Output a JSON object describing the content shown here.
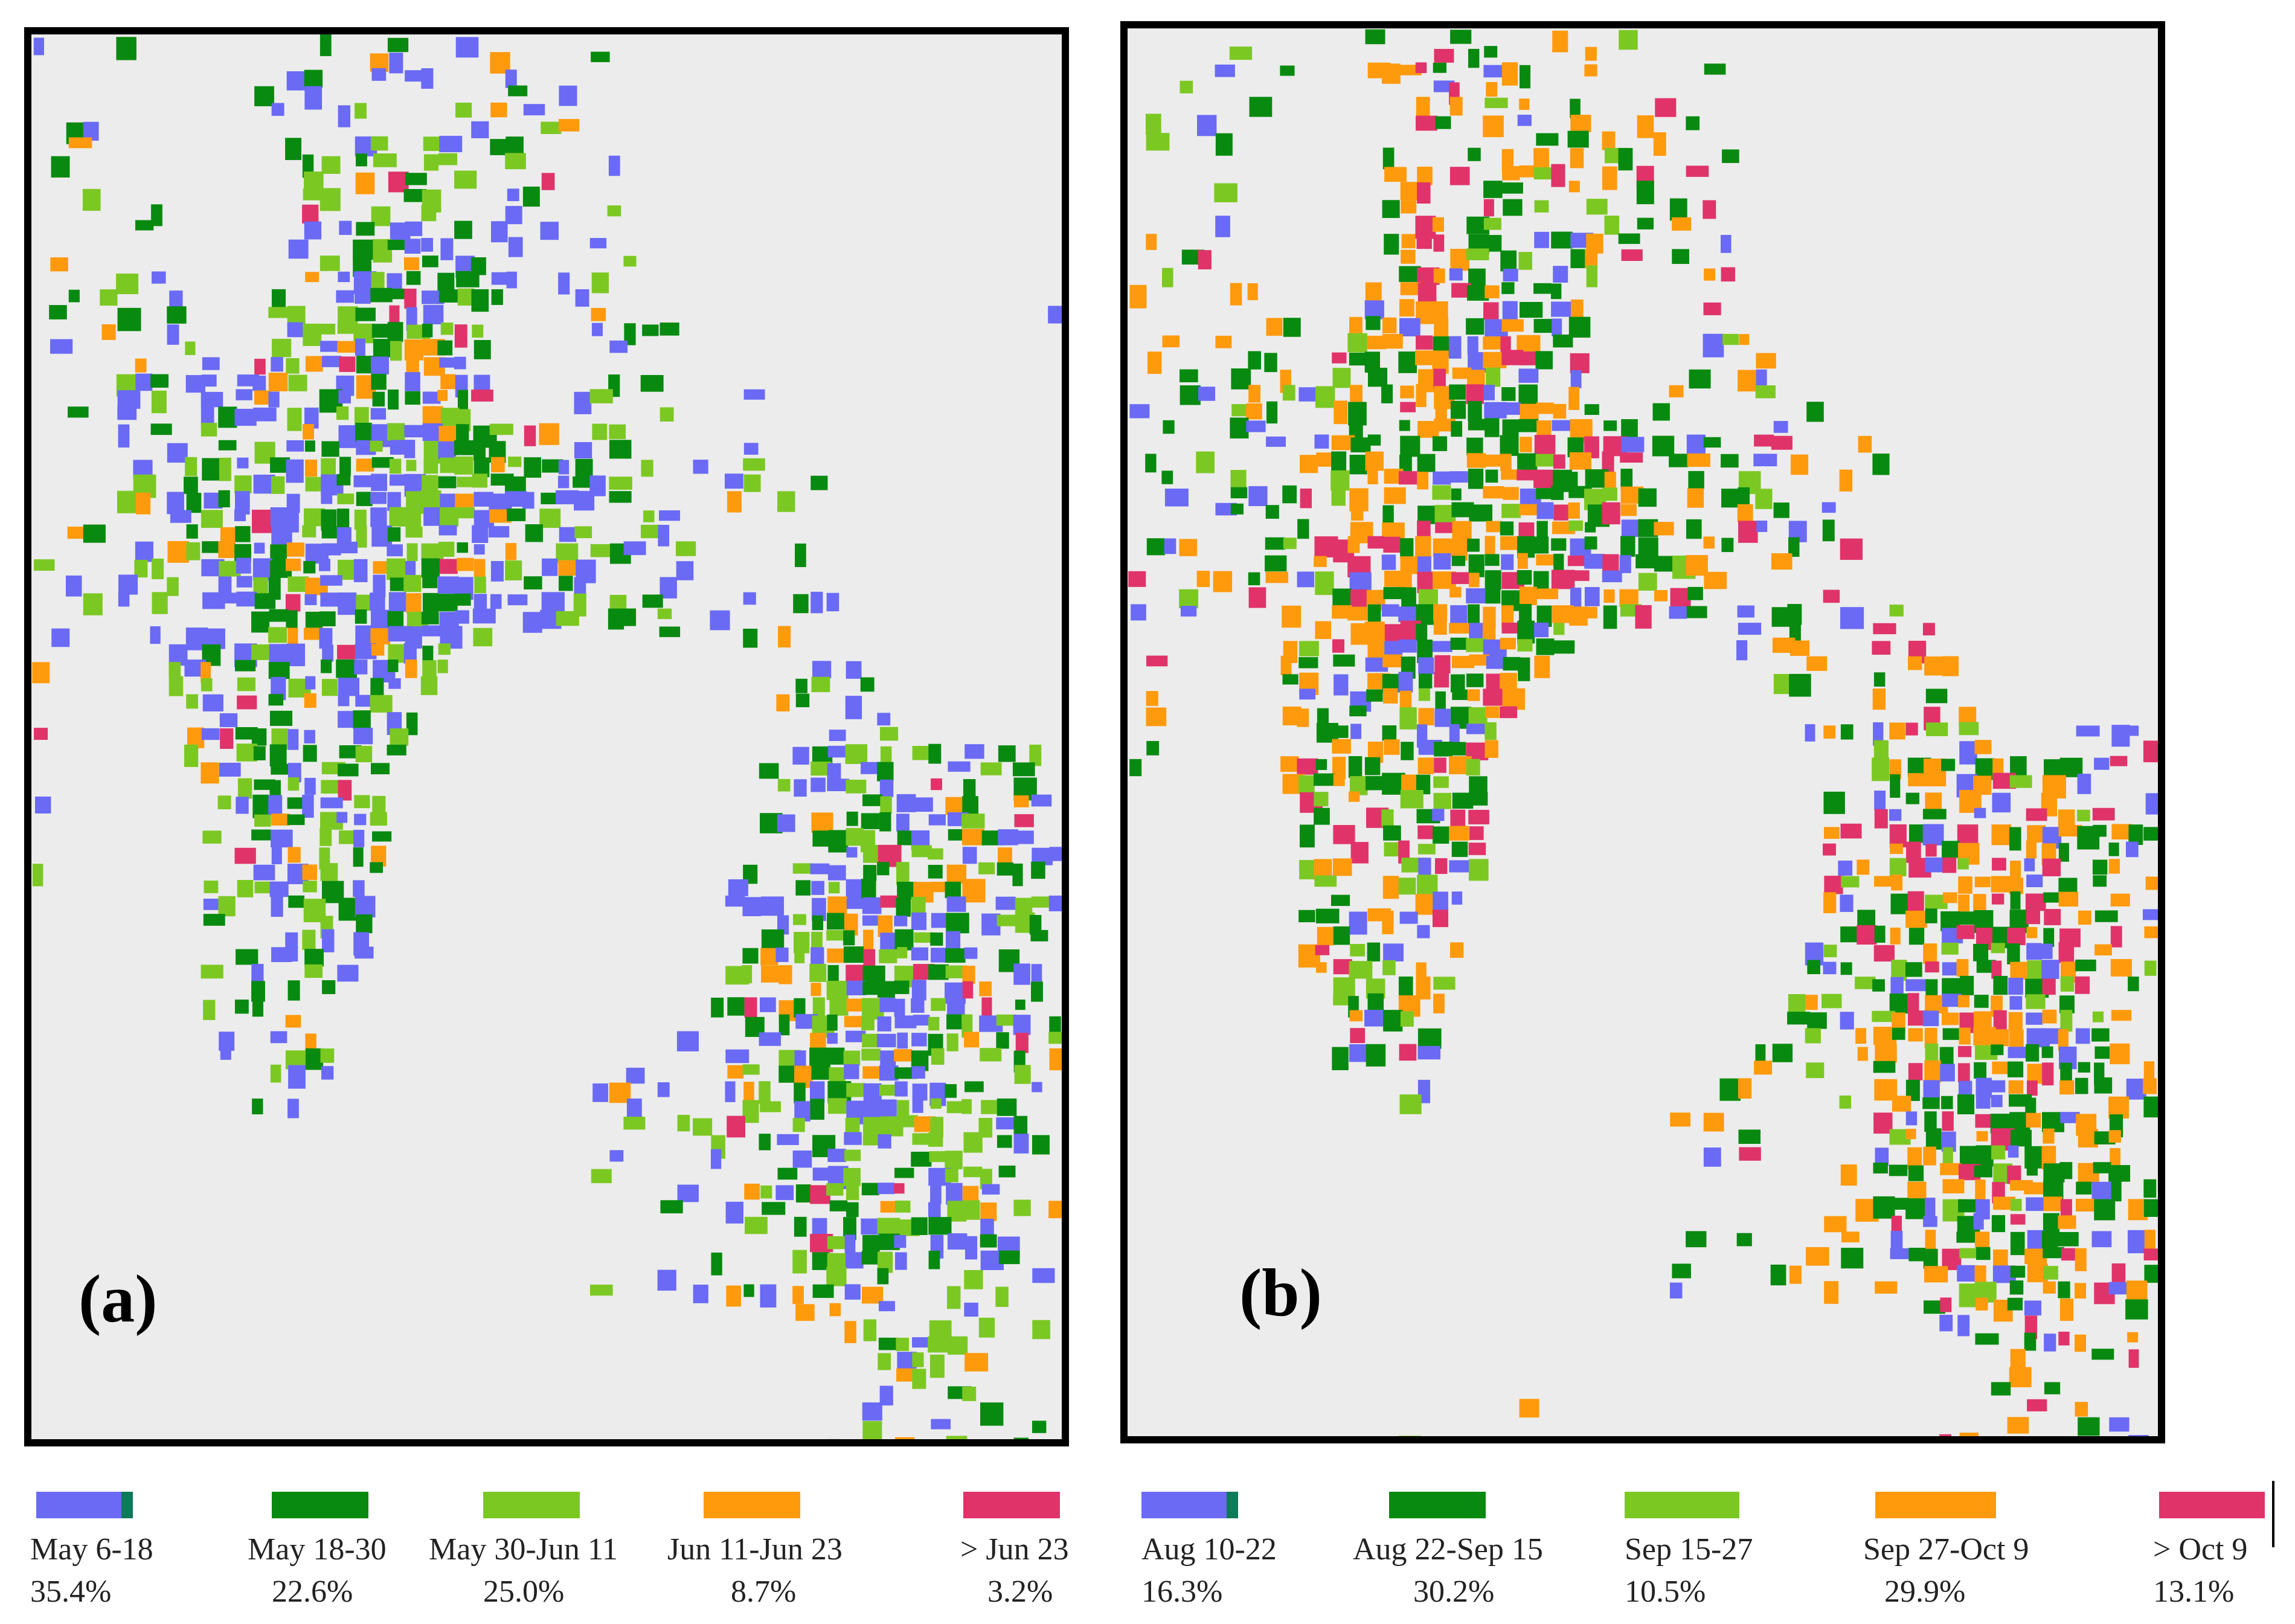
{
  "figure": {
    "panels": [
      {
        "label": "(a)",
        "legend": [
          {
            "label": "May 6-18",
            "percent": "35.4%",
            "color": "#6a6af5",
            "accent": "#0d7a5a"
          },
          {
            "label": "May 18-30",
            "percent": "22.6%",
            "color": "#078a0f"
          },
          {
            "label": "May 30-Jun 11",
            "percent": "25.0%",
            "color": "#7cc823"
          },
          {
            "label": "Jun 11-Jun 23",
            "percent": "8.7%",
            "color": "#ff9a0d"
          },
          {
            "label": "> Jun 23",
            "percent": "3.2%",
            "color": "#e0336a"
          }
        ]
      },
      {
        "label": "(b)",
        "legend": [
          {
            "label": "Aug 10-22",
            "percent": "16.3%",
            "color": "#6a6af5",
            "accent": "#0d7a5a"
          },
          {
            "label": "Aug 22-Sep 15",
            "percent": "30.2%",
            "color": "#078a0f"
          },
          {
            "label": "Sep 15-27",
            "percent": "10.5%",
            "color": "#7cc823"
          },
          {
            "label": "Sep 27-Oct 9",
            "percent": "29.9%",
            "color": "#ff9a0d"
          },
          {
            "label": "> Oct 9",
            "percent": "13.1%",
            "color": "#e0336a"
          }
        ]
      }
    ],
    "background_color": "#ececec"
  }
}
